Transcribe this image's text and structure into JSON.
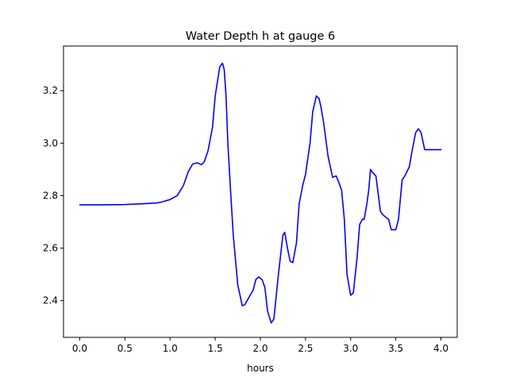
{
  "chart_data": {
    "type": "line",
    "title": "Water Depth h at gauge 6",
    "xlabel": "hours",
    "ylabel": "",
    "xlim": [
      -0.18,
      4.18
    ],
    "ylim": [
      2.26,
      3.37
    ],
    "xticks": [
      0.0,
      0.5,
      1.0,
      1.5,
      2.0,
      2.5,
      3.0,
      3.5,
      4.0
    ],
    "xtick_labels": [
      "0.0",
      "0.5",
      "1.0",
      "1.5",
      "2.0",
      "2.5",
      "3.0",
      "3.5",
      "4.0"
    ],
    "yticks": [
      2.4,
      2.6,
      2.8,
      3.0,
      3.2
    ],
    "ytick_labels": [
      "2.4",
      "2.6",
      "2.8",
      "3.0",
      "3.2"
    ],
    "grid": false,
    "legend": "none",
    "series": [
      {
        "color": "#0000ff",
        "x": [
          0.0,
          0.25,
          0.5,
          0.7,
          0.85,
          0.9,
          1.0,
          1.08,
          1.15,
          1.2,
          1.25,
          1.3,
          1.35,
          1.38,
          1.42,
          1.47,
          1.5,
          1.55,
          1.58,
          1.6,
          1.62,
          1.64,
          1.67,
          1.7,
          1.75,
          1.8,
          1.83,
          1.87,
          1.92,
          1.95,
          1.98,
          2.02,
          2.05,
          2.08,
          2.12,
          2.15,
          2.2,
          2.25,
          2.27,
          2.3,
          2.33,
          2.36,
          2.4,
          2.43,
          2.47,
          2.5,
          2.55,
          2.58,
          2.62,
          2.65,
          2.67,
          2.7,
          2.75,
          2.8,
          2.84,
          2.87,
          2.9,
          2.93,
          2.96,
          3.0,
          3.03,
          3.07,
          3.1,
          3.13,
          3.15,
          3.18,
          3.2,
          3.22,
          3.25,
          3.28,
          3.3,
          3.33,
          3.35,
          3.38,
          3.4,
          3.42,
          3.45,
          3.5,
          3.53,
          3.57,
          3.6,
          3.65,
          3.68,
          3.72,
          3.75,
          3.78,
          3.82,
          3.85,
          3.88,
          3.92,
          3.95,
          3.97,
          4.0
        ],
        "y": [
          2.765,
          2.765,
          2.766,
          2.769,
          2.772,
          2.775,
          2.785,
          2.8,
          2.84,
          2.89,
          2.92,
          2.925,
          2.918,
          2.93,
          2.97,
          3.06,
          3.18,
          3.29,
          3.305,
          3.28,
          3.18,
          3.0,
          2.82,
          2.65,
          2.46,
          2.38,
          2.385,
          2.41,
          2.44,
          2.48,
          2.49,
          2.48,
          2.45,
          2.36,
          2.315,
          2.33,
          2.5,
          2.65,
          2.66,
          2.6,
          2.55,
          2.545,
          2.62,
          2.77,
          2.84,
          2.88,
          3.0,
          3.12,
          3.18,
          3.17,
          3.14,
          3.08,
          2.95,
          2.87,
          2.875,
          2.85,
          2.82,
          2.71,
          2.5,
          2.42,
          2.43,
          2.56,
          2.69,
          2.71,
          2.71,
          2.77,
          2.82,
          2.9,
          2.885,
          2.875,
          2.82,
          2.74,
          2.73,
          2.72,
          2.715,
          2.71,
          2.67,
          2.67,
          2.71,
          2.86,
          2.875,
          2.91,
          2.97,
          3.04,
          3.055,
          3.04,
          2.975,
          2.975,
          2.975,
          2.975,
          2.975,
          2.975,
          2.975
        ]
      }
    ]
  }
}
